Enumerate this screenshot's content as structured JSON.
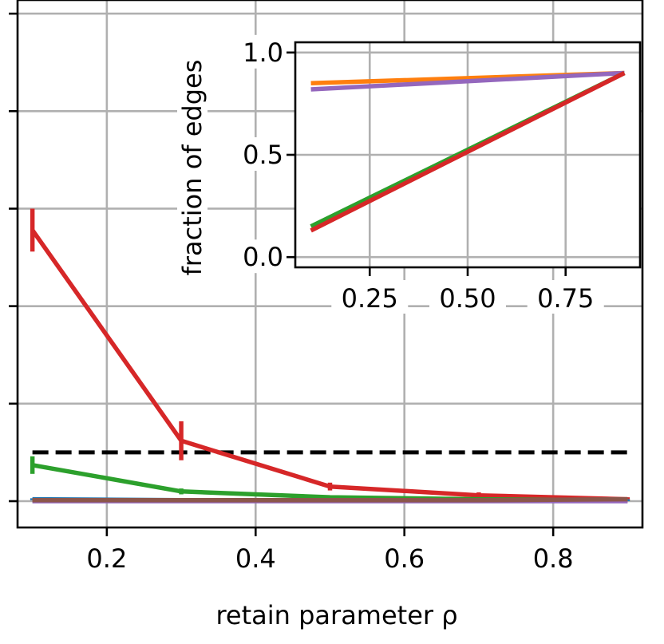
{
  "chart_data": [
    {
      "type": "line",
      "xlabel": "retain parameter ρ",
      "ylabel": "",
      "xlim": [
        0.08,
        0.92
      ],
      "ylim": [
        -0.27,
        5.14
      ],
      "xticks": [
        0.2,
        0.4,
        0.6,
        0.8
      ],
      "xtick_labels": [
        "0.2",
        "0.4",
        "0.6",
        "0.8"
      ],
      "yticks": [
        0,
        1,
        2,
        3,
        4,
        5
      ],
      "ytick_labels_visible": false,
      "grid": true,
      "series": [
        {
          "color": "#d62728",
          "x": [
            0.1,
            0.3,
            0.5,
            0.7,
            0.9
          ],
          "y": [
            2.78,
            0.62,
            0.15,
            0.06,
            0.02
          ],
          "err": [
            0.22,
            0.2,
            0.04,
            0.03,
            0.02
          ]
        },
        {
          "color": "#2ca02c",
          "x": [
            0.1,
            0.3,
            0.5,
            0.7,
            0.9
          ],
          "y": [
            0.37,
            0.1,
            0.04,
            0.02,
            0.01
          ],
          "err": [
            0.09,
            0.03,
            0.02,
            0.01,
            0.01
          ]
        },
        {
          "color": "#1f77b4",
          "x": [
            0.1,
            0.3,
            0.5,
            0.7,
            0.9
          ],
          "y": [
            0.02,
            0.01,
            0.01,
            0.01,
            0.01
          ],
          "err": [
            0.01,
            0.01,
            0.01,
            0.01,
            0.01
          ]
        },
        {
          "color": "#ff7f0e",
          "x": [
            0.1,
            0.3,
            0.5,
            0.7,
            0.9
          ],
          "y": [
            0.01,
            0.01,
            0.01,
            0.01,
            0.01
          ],
          "err": [
            0,
            0,
            0,
            0,
            0
          ]
        },
        {
          "color": "#9467bd",
          "x": [
            0.1,
            0.3,
            0.5,
            0.7,
            0.9
          ],
          "y": [
            0.0,
            0.0,
            0.0,
            0.0,
            0.0
          ],
          "err": [
            0,
            0,
            0,
            0,
            0
          ]
        },
        {
          "color": "#8c564b",
          "x": [
            0.1,
            0.3,
            0.5,
            0.7,
            0.9
          ],
          "y": [
            0.01,
            0.01,
            0.01,
            0.01,
            0.02
          ],
          "err": [
            0,
            0,
            0,
            0,
            0
          ]
        }
      ],
      "reference_line": {
        "y": 0.5,
        "x": [
          0.1,
          0.9
        ],
        "color": "#000000",
        "style": "dashed"
      }
    },
    {
      "type": "line",
      "xlabel": "",
      "ylabel": "fraction of edges",
      "xlim": [
        0.06,
        0.94
      ],
      "ylim": [
        -0.05,
        1.05
      ],
      "xticks": [
        0.25,
        0.5,
        0.75
      ],
      "xtick_labels": [
        "0.25",
        "0.50",
        "0.75"
      ],
      "yticks": [
        0.0,
        0.5,
        1.0
      ],
      "ytick_labels": [
        "0.0",
        "0.5",
        "1.0"
      ],
      "grid": true,
      "series": [
        {
          "color": "#ff7f0e",
          "x": [
            0.1,
            0.9
          ],
          "y": [
            0.85,
            0.9
          ]
        },
        {
          "color": "#9467bd",
          "x": [
            0.1,
            0.9
          ],
          "y": [
            0.82,
            0.9
          ]
        },
        {
          "color": "#2ca02c",
          "x": [
            0.1,
            0.9
          ],
          "y": [
            0.15,
            0.9
          ]
        },
        {
          "color": "#d62728",
          "x": [
            0.1,
            0.9
          ],
          "y": [
            0.13,
            0.9
          ]
        }
      ]
    }
  ]
}
